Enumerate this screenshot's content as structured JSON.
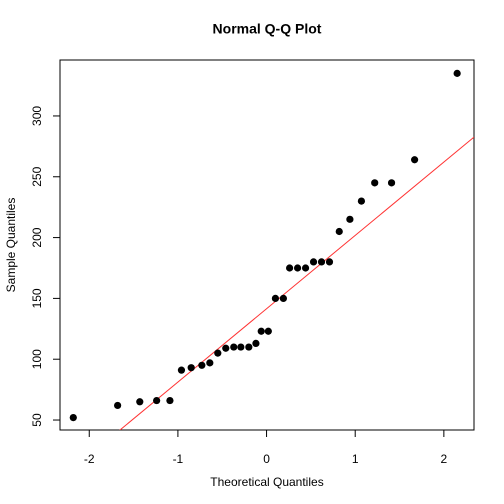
{
  "chart_data": {
    "type": "scatter",
    "title": "Normal Q-Q Plot",
    "xlabel": "Theoretical Quantiles",
    "ylabel": "Sample Quantiles",
    "x": [
      -2.18,
      -1.68,
      -1.43,
      -1.24,
      -1.09,
      -0.96,
      -0.85,
      -0.73,
      -0.64,
      -0.55,
      -0.46,
      -0.37,
      -0.29,
      -0.2,
      -0.12,
      -0.06,
      0.02,
      0.1,
      0.19,
      0.26,
      0.35,
      0.44,
      0.53,
      0.62,
      0.71,
      0.82,
      0.94,
      1.07,
      1.22,
      1.41,
      1.67,
      2.15
    ],
    "values": [
      52,
      62,
      65,
      66,
      66,
      91,
      93,
      95,
      97,
      105,
      109,
      110,
      110,
      110,
      113,
      123,
      123,
      150,
      150,
      175,
      175,
      175,
      180,
      180,
      180,
      205,
      215,
      230,
      245,
      245,
      264,
      335
    ],
    "color": "#000000",
    "abline": {
      "intercept": 141.5,
      "slope": 60.3,
      "color": "#ff3333"
    },
    "xlim": [
      -2.33,
      2.34
    ],
    "xticks": [
      -2,
      -1,
      0,
      1,
      2
    ],
    "ylim": [
      41.8,
      346
    ],
    "yticks": [
      50,
      100,
      150,
      200,
      250,
      300
    ]
  }
}
